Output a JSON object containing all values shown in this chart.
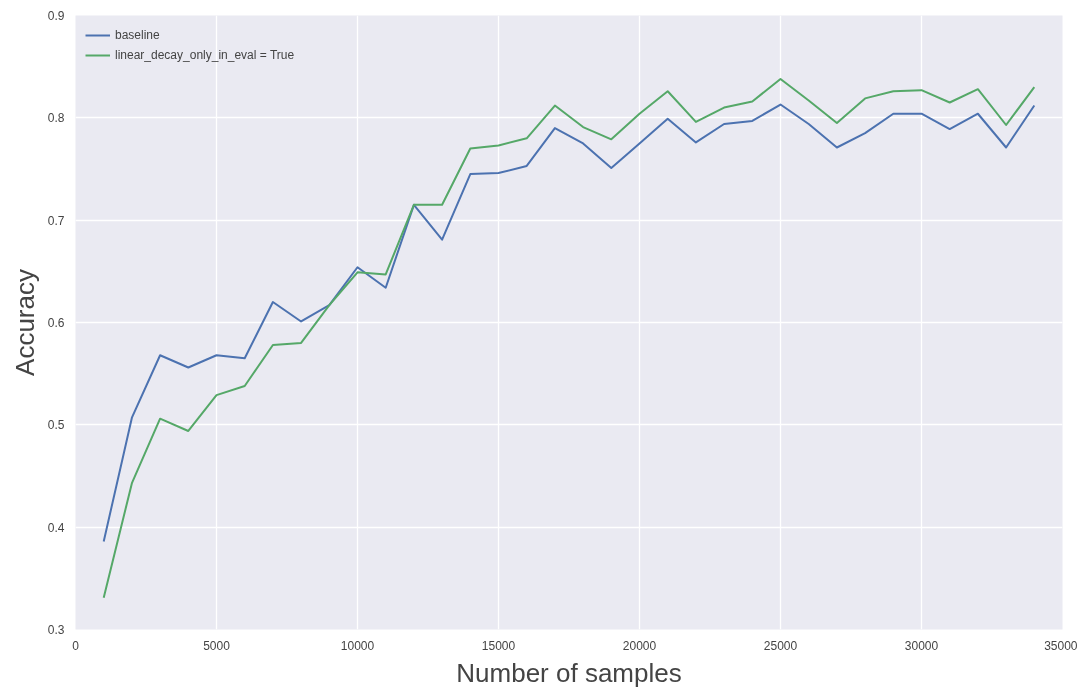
{
  "chart_data": {
    "type": "line",
    "xlabel": "Number of samples",
    "ylabel": "Accuracy",
    "x": [
      1000,
      2000,
      3000,
      4000,
      5000,
      6000,
      7000,
      8000,
      9000,
      10000,
      11000,
      12000,
      13000,
      14000,
      15000,
      16000,
      17000,
      18000,
      19000,
      20000,
      21000,
      22000,
      23000,
      24000,
      25000,
      26000,
      27000,
      28000,
      29000,
      30000,
      31000,
      32000,
      33000,
      34000
    ],
    "series": [
      {
        "name": "baseline",
        "color": "#4c72b0",
        "values": [
          0.386,
          0.507,
          0.568,
          0.556,
          0.568,
          0.565,
          0.62,
          0.601,
          0.617,
          0.654,
          0.634,
          0.715,
          0.681,
          0.745,
          0.746,
          0.753,
          0.79,
          0.775,
          0.751,
          0.775,
          0.799,
          0.776,
          0.794,
          0.797,
          0.813,
          0.794,
          0.771,
          0.785,
          0.804,
          0.804,
          0.789,
          0.804,
          0.771,
          0.812
        ]
      },
      {
        "name": "linear_decay_only_in_eval = True",
        "color": "#55a868",
        "values": [
          0.331,
          0.443,
          0.506,
          0.494,
          0.529,
          0.538,
          0.578,
          0.58,
          0.617,
          0.649,
          0.647,
          0.715,
          0.715,
          0.77,
          0.773,
          0.78,
          0.812,
          0.791,
          0.779,
          0.804,
          0.826,
          0.796,
          0.81,
          0.816,
          0.838,
          0.817,
          0.795,
          0.819,
          0.826,
          0.827,
          0.815,
          0.828,
          0.793,
          0.83
        ]
      }
    ],
    "xlim": [
      0,
      35000
    ],
    "ylim": [
      0.3,
      0.9
    ],
    "xticks": [
      0,
      5000,
      10000,
      15000,
      20000,
      25000,
      30000,
      35000
    ],
    "yticks": [
      0.3,
      0.4,
      0.5,
      0.6,
      0.7,
      0.8,
      0.9
    ],
    "grid": true,
    "legend": "top left",
    "line_style": "solid",
    "marker": "none"
  }
}
